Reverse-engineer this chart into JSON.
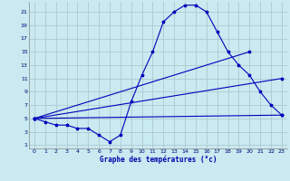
{
  "title": "Graphe des températures (°c)",
  "bg_color": "#c8eaf0",
  "line_color": "#0000bb",
  "grid_color": "#b0c8d0",
  "xlim": [
    -0.5,
    23.5
  ],
  "ylim": [
    0.5,
    22.5
  ],
  "xticks": [
    0,
    1,
    2,
    3,
    4,
    5,
    6,
    7,
    8,
    9,
    10,
    11,
    12,
    13,
    14,
    15,
    16,
    17,
    18,
    19,
    20,
    21,
    22,
    23
  ],
  "yticks": [
    1,
    3,
    5,
    7,
    9,
    11,
    13,
    15,
    17,
    19,
    21
  ],
  "series": [
    {
      "x": [
        0,
        1,
        2,
        3,
        4,
        5,
        6,
        7,
        8,
        9,
        10,
        11,
        12,
        13,
        14,
        15,
        16,
        17,
        18,
        19,
        20,
        21,
        22,
        23
      ],
      "y": [
        5,
        4.5,
        4,
        4,
        3.5,
        3.5,
        2.5,
        1.5,
        2.5,
        7.5,
        11.5,
        15,
        19.5,
        21,
        22,
        22,
        21,
        18,
        15,
        13,
        11.5,
        9,
        7,
        5.5
      ]
    },
    {
      "x": [
        0,
        23
      ],
      "y": [
        5,
        5.5
      ]
    },
    {
      "x": [
        0,
        23
      ],
      "y": [
        5,
        11
      ]
    },
    {
      "x": [
        0,
        20
      ],
      "y": [
        5,
        15
      ]
    }
  ]
}
